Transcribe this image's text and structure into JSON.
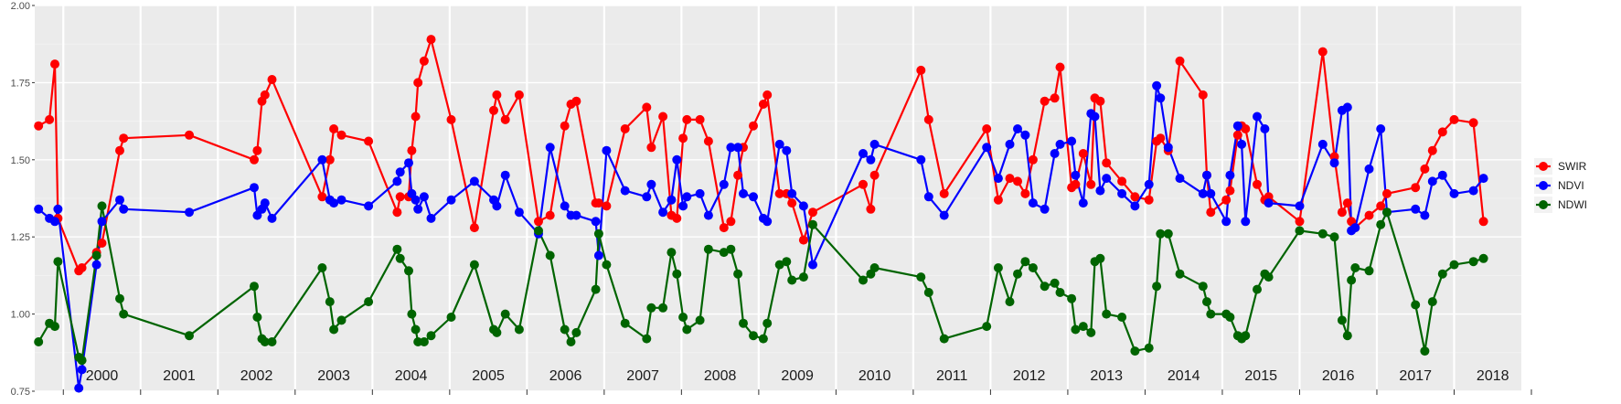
{
  "chart_data": {
    "type": "line",
    "title": "",
    "xlabel": "",
    "ylabel": "",
    "x_unit": "year (decimal)",
    "xlim": [
      1999.63,
      2018.87
    ],
    "ylim": [
      0.75,
      2.0
    ],
    "y_ticks": [
      0.75,
      1.0,
      1.25,
      1.5,
      1.75,
      2.0
    ],
    "y_tick_labels": [
      "0.75",
      "1.00",
      "1.25",
      "1.50",
      "1.75",
      "2.00"
    ],
    "year_labels": [
      "2000",
      "2001",
      "2002",
      "2003",
      "2004",
      "2005",
      "2006",
      "2007",
      "2008",
      "2009",
      "2010",
      "2011",
      "2012",
      "2013",
      "2014",
      "2015",
      "2016",
      "2017",
      "2018"
    ],
    "grid": true,
    "legend_position": "right",
    "series": [
      {
        "name": "SWIR",
        "color": "#ff0000",
        "x": [
          1999.68,
          1999.82,
          1999.89,
          1999.93,
          2000.2,
          2000.24,
          2000.43,
          2000.5,
          2000.73,
          2000.78,
          2001.63,
          2002.47,
          2002.51,
          2002.57,
          2002.61,
          2002.7,
          2003.35,
          2003.45,
          2003.5,
          2003.6,
          2003.95,
          2004.32,
          2004.36,
          2004.47,
          2004.51,
          2004.56,
          2004.59,
          2004.67,
          2004.76,
          2005.02,
          2005.32,
          2005.57,
          2005.61,
          2005.72,
          2005.9,
          2006.15,
          2006.3,
          2006.49,
          2006.57,
          2006.64,
          2006.89,
          2006.93,
          2007.03,
          2007.27,
          2007.55,
          2007.61,
          2007.76,
          2007.87,
          2007.94,
          2008.02,
          2008.07,
          2008.24,
          2008.35,
          2008.55,
          2008.64,
          2008.73,
          2008.8,
          2008.93,
          2009.06,
          2009.11,
          2009.27,
          2009.36,
          2009.43,
          2009.58,
          2009.7,
          2010.35,
          2010.45,
          2010.5,
          2011.1,
          2011.2,
          2011.4,
          2011.95,
          2012.1,
          2012.25,
          2012.35,
          2012.45,
          2012.55,
          2012.7,
          2012.83,
          2012.9,
          2013.05,
          2013.1,
          2013.2,
          2013.3,
          2013.35,
          2013.42,
          2013.5,
          2013.7,
          2013.87,
          2014.05,
          2014.15,
          2014.2,
          2014.3,
          2014.45,
          2014.75,
          2014.8,
          2014.85,
          2015.05,
          2015.1,
          2015.2,
          2015.25,
          2015.3,
          2015.45,
          2015.55,
          2015.6,
          2016.0,
          2016.3,
          2016.45,
          2016.55,
          2016.62,
          2016.67,
          2016.72,
          2016.9,
          2017.05,
          2017.13,
          2017.5,
          2017.62,
          2017.72,
          2017.85,
          2018.0,
          2018.25,
          2018.38
        ],
        "values": [
          1.61,
          1.63,
          1.81,
          1.31,
          1.14,
          1.15,
          1.2,
          1.23,
          1.53,
          1.57,
          1.58,
          1.5,
          1.53,
          1.69,
          1.71,
          1.76,
          1.38,
          1.5,
          1.6,
          1.58,
          1.56,
          1.33,
          1.38,
          1.38,
          1.53,
          1.64,
          1.75,
          1.82,
          1.89,
          1.63,
          1.28,
          1.66,
          1.71,
          1.63,
          1.71,
          1.3,
          1.32,
          1.61,
          1.68,
          1.69,
          1.36,
          1.36,
          1.35,
          1.6,
          1.67,
          1.54,
          1.64,
          1.32,
          1.31,
          1.57,
          1.63,
          1.63,
          1.56,
          1.28,
          1.3,
          1.45,
          1.54,
          1.61,
          1.68,
          1.71,
          1.39,
          1.39,
          1.36,
          1.24,
          1.33,
          1.42,
          1.34,
          1.45,
          1.79,
          1.63,
          1.39,
          1.6,
          1.37,
          1.44,
          1.43,
          1.39,
          1.5,
          1.69,
          1.7,
          1.8,
          1.41,
          1.42,
          1.52,
          1.42,
          1.7,
          1.69,
          1.49,
          1.43,
          1.38,
          1.37,
          1.56,
          1.57,
          1.53,
          1.82,
          1.71,
          1.45,
          1.33,
          1.37,
          1.4,
          1.58,
          1.61,
          1.6,
          1.42,
          1.37,
          1.38,
          1.3,
          1.85,
          1.51,
          1.33,
          1.36,
          1.3,
          1.28,
          1.32,
          1.35,
          1.39,
          1.41,
          1.47,
          1.53,
          1.59,
          1.63,
          1.62,
          1.3
        ]
      },
      {
        "name": "NDVI",
        "color": "#0000ff",
        "x": [
          1999.68,
          1999.82,
          1999.89,
          1999.93,
          2000.2,
          2000.24,
          2000.43,
          2000.5,
          2000.73,
          2000.78,
          2001.63,
          2002.47,
          2002.51,
          2002.57,
          2002.61,
          2002.7,
          2003.35,
          2003.45,
          2003.5,
          2003.6,
          2003.95,
          2004.32,
          2004.36,
          2004.47,
          2004.51,
          2004.56,
          2004.59,
          2004.67,
          2004.76,
          2005.02,
          2005.32,
          2005.57,
          2005.61,
          2005.72,
          2005.9,
          2006.15,
          2006.3,
          2006.49,
          2006.57,
          2006.64,
          2006.89,
          2006.93,
          2007.03,
          2007.27,
          2007.55,
          2007.61,
          2007.76,
          2007.87,
          2007.94,
          2008.02,
          2008.07,
          2008.24,
          2008.35,
          2008.55,
          2008.64,
          2008.73,
          2008.8,
          2008.93,
          2009.06,
          2009.11,
          2009.27,
          2009.36,
          2009.43,
          2009.58,
          2009.7,
          2010.35,
          2010.45,
          2010.5,
          2011.1,
          2011.2,
          2011.4,
          2011.95,
          2012.1,
          2012.25,
          2012.35,
          2012.45,
          2012.55,
          2012.7,
          2012.83,
          2012.9,
          2013.05,
          2013.1,
          2013.2,
          2013.3,
          2013.35,
          2013.42,
          2013.5,
          2013.7,
          2013.87,
          2014.05,
          2014.15,
          2014.2,
          2014.3,
          2014.45,
          2014.75,
          2014.8,
          2014.85,
          2015.05,
          2015.1,
          2015.2,
          2015.25,
          2015.3,
          2015.45,
          2015.55,
          2015.6,
          2016.0,
          2016.3,
          2016.45,
          2016.55,
          2016.62,
          2016.67,
          2016.72,
          2016.9,
          2017.05,
          2017.13,
          2017.5,
          2017.62,
          2017.72,
          2017.85,
          2018.0,
          2018.25,
          2018.38
        ],
        "values": [
          1.34,
          1.31,
          1.3,
          1.34,
          0.76,
          0.82,
          1.16,
          1.3,
          1.37,
          1.34,
          1.33,
          1.41,
          1.32,
          1.34,
          1.36,
          1.31,
          1.5,
          1.37,
          1.36,
          1.37,
          1.35,
          1.43,
          1.46,
          1.49,
          1.39,
          1.37,
          1.34,
          1.38,
          1.31,
          1.37,
          1.43,
          1.37,
          1.35,
          1.45,
          1.33,
          1.26,
          1.54,
          1.35,
          1.32,
          1.32,
          1.3,
          1.19,
          1.53,
          1.4,
          1.38,
          1.42,
          1.33,
          1.37,
          1.5,
          1.35,
          1.38,
          1.39,
          1.32,
          1.42,
          1.54,
          1.54,
          1.39,
          1.38,
          1.31,
          1.3,
          1.55,
          1.53,
          1.39,
          1.35,
          1.16,
          1.52,
          1.5,
          1.55,
          1.5,
          1.38,
          1.32,
          1.54,
          1.44,
          1.55,
          1.6,
          1.58,
          1.36,
          1.34,
          1.52,
          1.55,
          1.56,
          1.45,
          1.36,
          1.65,
          1.64,
          1.4,
          1.44,
          1.39,
          1.35,
          1.42,
          1.74,
          1.7,
          1.54,
          1.44,
          1.39,
          1.45,
          1.39,
          1.3,
          1.45,
          1.61,
          1.55,
          1.3,
          1.64,
          1.6,
          1.36,
          1.35,
          1.55,
          1.49,
          1.66,
          1.67,
          1.27,
          1.28,
          1.47,
          1.6,
          1.33,
          1.34,
          1.32,
          1.43,
          1.45,
          1.39,
          1.4,
          1.44
        ]
      },
      {
        "name": "NDWI",
        "color": "#006400",
        "x": [
          1999.68,
          1999.82,
          1999.89,
          1999.93,
          2000.2,
          2000.24,
          2000.43,
          2000.5,
          2000.73,
          2000.78,
          2001.63,
          2002.47,
          2002.51,
          2002.57,
          2002.61,
          2002.7,
          2003.35,
          2003.45,
          2003.5,
          2003.6,
          2003.95,
          2004.32,
          2004.36,
          2004.47,
          2004.51,
          2004.56,
          2004.59,
          2004.67,
          2004.76,
          2005.02,
          2005.32,
          2005.57,
          2005.61,
          2005.72,
          2005.9,
          2006.15,
          2006.3,
          2006.49,
          2006.57,
          2006.64,
          2006.89,
          2006.93,
          2007.03,
          2007.27,
          2007.55,
          2007.61,
          2007.76,
          2007.87,
          2007.94,
          2008.02,
          2008.07,
          2008.24,
          2008.35,
          2008.55,
          2008.64,
          2008.73,
          2008.8,
          2008.93,
          2009.06,
          2009.11,
          2009.27,
          2009.36,
          2009.43,
          2009.58,
          2009.7,
          2010.35,
          2010.45,
          2010.5,
          2011.1,
          2011.2,
          2011.4,
          2011.95,
          2012.1,
          2012.25,
          2012.35,
          2012.45,
          2012.55,
          2012.7,
          2012.83,
          2012.9,
          2013.05,
          2013.1,
          2013.2,
          2013.3,
          2013.35,
          2013.42,
          2013.5,
          2013.7,
          2013.87,
          2014.05,
          2014.15,
          2014.2,
          2014.3,
          2014.45,
          2014.75,
          2014.8,
          2014.85,
          2015.05,
          2015.1,
          2015.2,
          2015.25,
          2015.3,
          2015.45,
          2015.55,
          2015.6,
          2016.0,
          2016.3,
          2016.45,
          2016.55,
          2016.62,
          2016.67,
          2016.72,
          2016.9,
          2017.05,
          2017.13,
          2017.5,
          2017.62,
          2017.72,
          2017.85,
          2018.0,
          2018.25,
          2018.38
        ],
        "values": [
          0.91,
          0.97,
          0.96,
          1.17,
          0.86,
          0.85,
          1.19,
          1.35,
          1.05,
          1.0,
          0.93,
          1.09,
          0.99,
          0.92,
          0.91,
          0.91,
          1.15,
          1.04,
          0.95,
          0.98,
          1.04,
          1.21,
          1.18,
          1.14,
          1.0,
          0.95,
          0.91,
          0.91,
          0.93,
          0.99,
          1.16,
          0.95,
          0.94,
          1.0,
          0.95,
          1.27,
          1.19,
          0.95,
          0.91,
          0.94,
          1.08,
          1.26,
          1.16,
          0.97,
          0.92,
          1.02,
          1.02,
          1.2,
          1.13,
          0.99,
          0.95,
          0.98,
          1.21,
          1.2,
          1.21,
          1.13,
          0.97,
          0.93,
          0.92,
          0.97,
          1.16,
          1.17,
          1.11,
          1.12,
          1.29,
          1.11,
          1.13,
          1.15,
          1.12,
          1.07,
          0.92,
          0.96,
          1.15,
          1.04,
          1.13,
          1.17,
          1.15,
          1.09,
          1.1,
          1.07,
          1.05,
          0.95,
          0.96,
          0.94,
          1.17,
          1.18,
          1.0,
          0.99,
          0.88,
          0.89,
          1.09,
          1.26,
          1.26,
          1.13,
          1.09,
          1.04,
          1.0,
          1.0,
          0.99,
          0.93,
          0.92,
          0.93,
          1.08,
          1.13,
          1.12,
          1.27,
          1.26,
          1.25,
          0.98,
          0.93,
          1.11,
          1.15,
          1.14,
          1.29,
          1.33,
          1.03,
          0.88,
          1.04,
          1.13,
          1.16,
          1.17,
          1.18
        ]
      }
    ]
  }
}
